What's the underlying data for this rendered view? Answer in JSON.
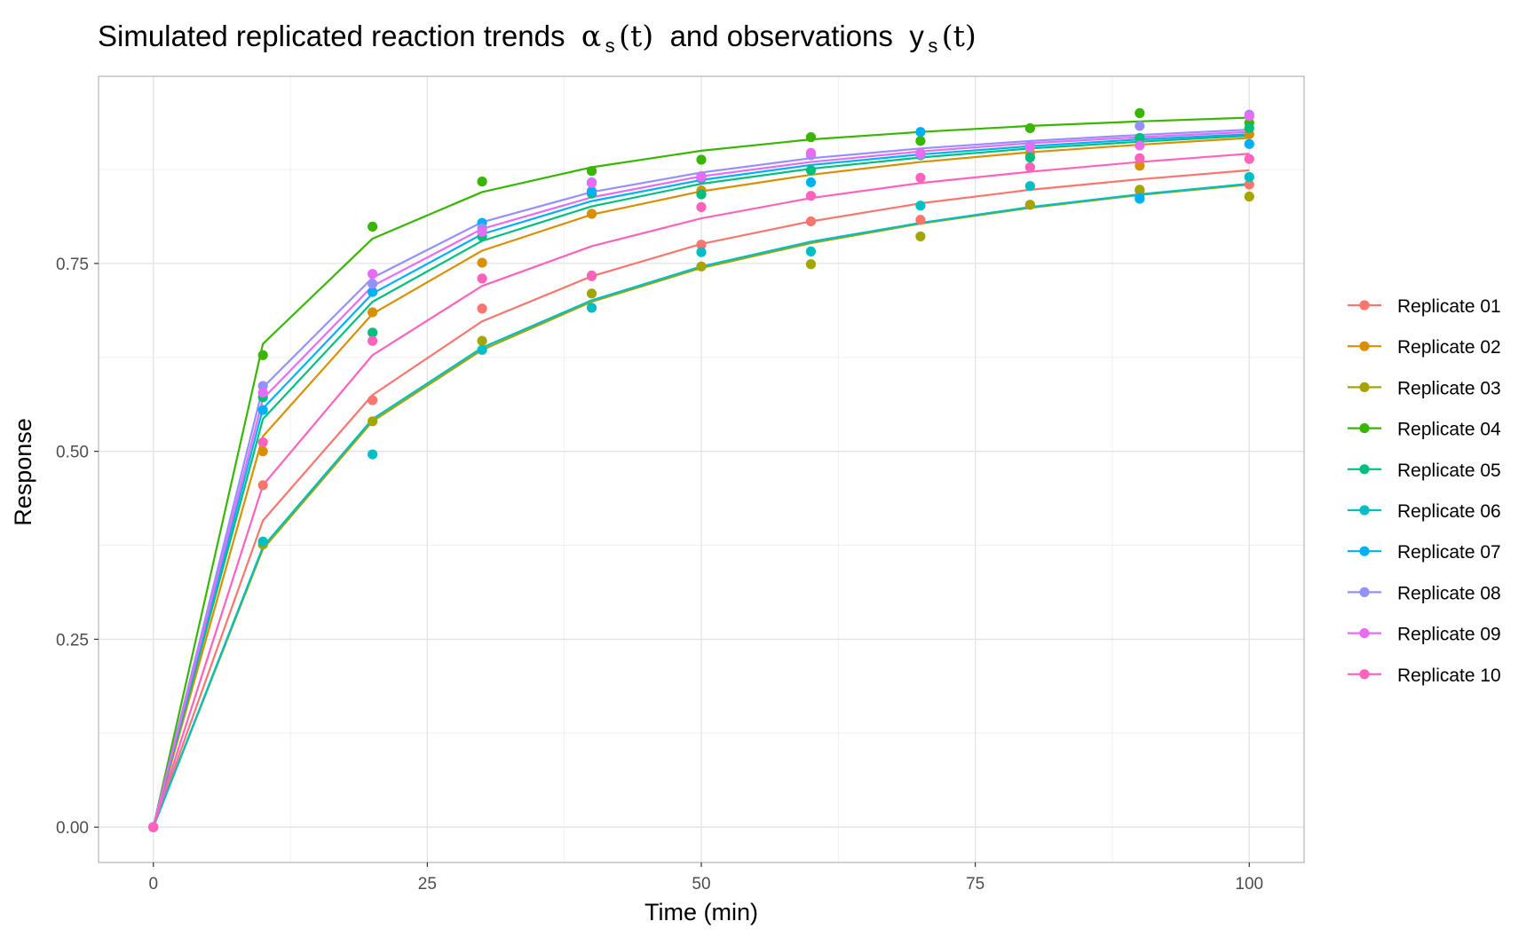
{
  "chart_data": {
    "type": "line",
    "title": "Simulated replicated reaction trends  αs(t)  and observations  ys(t)",
    "title_parts": {
      "part1": "Simulated replicated reaction trends",
      "alpha": "α",
      "alpha_sub": "s",
      "alpha_arg": "(t)",
      "part2": "and observations",
      "y": "y",
      "y_sub": "s",
      "y_arg": "(t)"
    },
    "xlabel": "Time (min)",
    "ylabel": "Response",
    "xlim": [
      -5,
      105
    ],
    "ylim": [
      -0.047,
      0.999
    ],
    "x_ticks": [
      0,
      25,
      50,
      75,
      100
    ],
    "x_tick_labels": [
      "0",
      "25",
      "50",
      "75",
      "100"
    ],
    "y_ticks": [
      0,
      0.25,
      0.5,
      0.75
    ],
    "y_tick_labels": [
      "0.00",
      "0.25",
      "0.50",
      "0.75"
    ],
    "grid": true,
    "legend_position": "right",
    "x": [
      0,
      10,
      20,
      30,
      40,
      50,
      60,
      70,
      80,
      90,
      100
    ],
    "series": [
      {
        "name": "Replicate 01",
        "color": "#F8766D",
        "trend": [
          0,
          0.408,
          0.575,
          0.673,
          0.733,
          0.776,
          0.806,
          0.83,
          0.848,
          0.862,
          0.874
        ],
        "obs": [
          0,
          0.455,
          0.568,
          0.69,
          0.733,
          0.775,
          0.806,
          0.808,
          0.828,
          0.847,
          0.855
        ]
      },
      {
        "name": "Replicate 02",
        "color": "#D89000",
        "trend": [
          0,
          0.52,
          0.683,
          0.767,
          0.815,
          0.846,
          0.868,
          0.885,
          0.898,
          0.908,
          0.917
        ],
        "obs": [
          0,
          0.5,
          0.685,
          0.751,
          0.816,
          0.847,
          0.896,
          0.895,
          0.897,
          0.88,
          0.922
        ]
      },
      {
        "name": "Replicate 03",
        "color": "#A3A500",
        "trend": [
          0,
          0.37,
          0.54,
          0.635,
          0.699,
          0.744,
          0.777,
          0.803,
          0.824,
          0.841,
          0.855
        ],
        "obs": [
          0,
          0.376,
          0.54,
          0.647,
          0.71,
          0.746,
          0.749,
          0.786,
          0.828,
          0.848,
          0.839
        ]
      },
      {
        "name": "Replicate 04",
        "color": "#39B600",
        "trend": [
          0,
          0.643,
          0.783,
          0.845,
          0.878,
          0.9,
          0.915,
          0.925,
          0.933,
          0.939,
          0.944
        ],
        "obs": [
          0,
          0.628,
          0.799,
          0.859,
          0.873,
          0.888,
          0.918,
          0.913,
          0.93,
          0.95,
          0.937
        ]
      },
      {
        "name": "Replicate 05",
        "color": "#00BF7D",
        "trend": [
          0,
          0.543,
          0.699,
          0.78,
          0.826,
          0.856,
          0.876,
          0.891,
          0.903,
          0.912,
          0.92
        ],
        "obs": [
          0,
          0.572,
          0.658,
          0.786,
          0.843,
          0.842,
          0.874,
          0.894,
          0.891,
          0.917,
          0.93
        ]
      },
      {
        "name": "Replicate 06",
        "color": "#00BFC4",
        "trend": [
          0,
          0.373,
          0.543,
          0.638,
          0.701,
          0.746,
          0.779,
          0.804,
          0.825,
          0.842,
          0.856
        ],
        "obs": [
          0,
          0.38,
          0.496,
          0.635,
          0.691,
          0.765,
          0.766,
          0.827,
          0.853,
          0.836,
          0.865
        ]
      },
      {
        "name": "Replicate 07",
        "color": "#00B0F6",
        "trend": [
          0,
          0.557,
          0.71,
          0.789,
          0.833,
          0.861,
          0.881,
          0.895,
          0.906,
          0.915,
          0.922
        ],
        "obs": [
          0,
          0.555,
          0.712,
          0.804,
          0.846,
          0.863,
          0.858,
          0.925,
          0.906,
          0.837,
          0.909
        ]
      },
      {
        "name": "Replicate 08",
        "color": "#9590FF",
        "trend": [
          0,
          0.585,
          0.731,
          0.805,
          0.845,
          0.871,
          0.89,
          0.903,
          0.913,
          0.921,
          0.928
        ],
        "obs": [
          0,
          0.587,
          0.723,
          0.797,
          0.858,
          0.866,
          0.894,
          0.895,
          0.907,
          0.933,
          0.948
        ]
      },
      {
        "name": "Replicate 09",
        "color": "#E76BF3",
        "trend": [
          0,
          0.57,
          0.72,
          0.796,
          0.838,
          0.866,
          0.885,
          0.899,
          0.91,
          0.918,
          0.925
        ],
        "obs": [
          0,
          0.578,
          0.736,
          0.792,
          0.857,
          0.865,
          0.897,
          0.897,
          0.905,
          0.907,
          0.946
        ]
      },
      {
        "name": "Replicate 10",
        "color": "#FF62BC",
        "trend": [
          0,
          0.455,
          0.628,
          0.72,
          0.773,
          0.81,
          0.837,
          0.857,
          0.872,
          0.885,
          0.896
        ],
        "obs": [
          0,
          0.512,
          0.647,
          0.73,
          0.734,
          0.825,
          0.84,
          0.864,
          0.878,
          0.89,
          0.889
        ]
      }
    ]
  }
}
